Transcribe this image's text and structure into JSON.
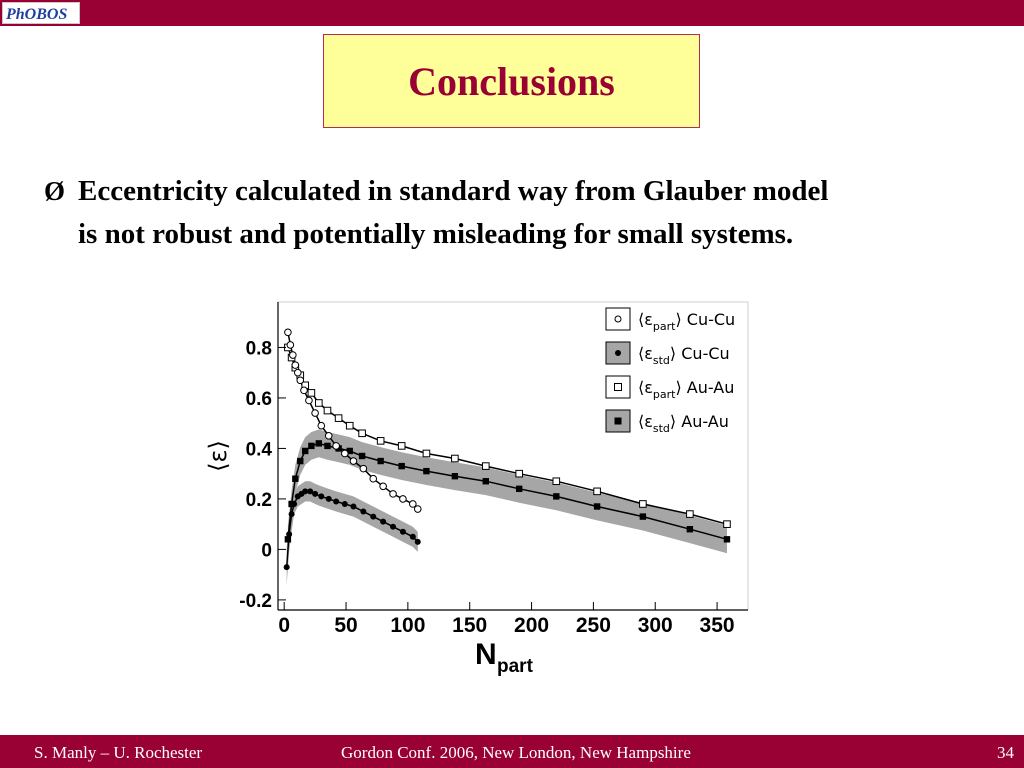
{
  "header": {
    "logo_text": "PhOBOS",
    "bar_color": "#990033"
  },
  "slide": {
    "title": "Conclusions",
    "title_color": "#990033",
    "title_box_color": "#ffff99",
    "bullet_marker": "Ø",
    "bullet_line1": "Eccentricity calculated in standard way from Glauber model",
    "bullet_line2": "is not robust and potentially misleading for small systems."
  },
  "chart_data": {
    "type": "scatter",
    "title": "",
    "xlabel": "N",
    "xlabel_sub": "part",
    "ylabel": "⟨ε⟩",
    "xlim": [
      -5,
      375
    ],
    "ylim": [
      -0.24,
      0.98
    ],
    "xticks": [
      0,
      50,
      100,
      150,
      200,
      250,
      300,
      350
    ],
    "yticks": [
      -0.2,
      0,
      0.2,
      0.4,
      0.6,
      0.8
    ],
    "xtick_labels": [
      "0",
      "50",
      "100",
      "150",
      "200",
      "250",
      "300",
      "350"
    ],
    "ytick_labels": [
      "-0.2",
      "0",
      "0.2",
      "0.4",
      "0.6",
      "0.8"
    ],
    "grid": false,
    "legend_position": "top-right",
    "legend": [
      {
        "symbol": "open-circle",
        "bracket_sub": "part",
        "system": "Cu-Cu"
      },
      {
        "symbol": "filled-circle",
        "bracket_sub": "std",
        "system": "Cu-Cu"
      },
      {
        "symbol": "open-square",
        "bracket_sub": "part",
        "system": "Au-Au"
      },
      {
        "symbol": "filled-square",
        "bracket_sub": "std",
        "system": "Au-Au"
      }
    ],
    "band_color": "#a6a6a6",
    "series": [
      {
        "name": "⟨εpart⟩ Cu-Cu",
        "marker": "open-circle",
        "x": [
          3,
          5,
          7,
          9,
          11,
          13,
          16,
          20,
          25,
          30,
          36,
          42,
          49,
          56,
          64,
          72,
          80,
          88,
          96,
          104,
          108
        ],
        "y": [
          0.86,
          0.81,
          0.77,
          0.73,
          0.7,
          0.67,
          0.63,
          0.59,
          0.54,
          0.49,
          0.45,
          0.41,
          0.38,
          0.35,
          0.32,
          0.28,
          0.25,
          0.22,
          0.2,
          0.18,
          0.16
        ]
      },
      {
        "name": "⟨εstd⟩ Cu-Cu",
        "marker": "filled-circle",
        "x": [
          2,
          4,
          6,
          8,
          11,
          14,
          17,
          21,
          25,
          30,
          36,
          42,
          49,
          56,
          64,
          72,
          80,
          88,
          96,
          104,
          108
        ],
        "y": [
          -0.07,
          0.06,
          0.14,
          0.18,
          0.21,
          0.22,
          0.23,
          0.23,
          0.22,
          0.21,
          0.2,
          0.19,
          0.18,
          0.17,
          0.15,
          0.13,
          0.11,
          0.09,
          0.07,
          0.05,
          0.03
        ]
      },
      {
        "name": "⟨εpart⟩ Au-Au",
        "marker": "open-square",
        "x": [
          3,
          6,
          9,
          13,
          17,
          22,
          28,
          35,
          44,
          53,
          63,
          78,
          95,
          115,
          138,
          163,
          190,
          220,
          253,
          290,
          328,
          358
        ],
        "y": [
          0.8,
          0.76,
          0.72,
          0.69,
          0.65,
          0.62,
          0.58,
          0.55,
          0.52,
          0.49,
          0.46,
          0.43,
          0.41,
          0.38,
          0.36,
          0.33,
          0.3,
          0.27,
          0.23,
          0.18,
          0.14,
          0.1
        ]
      },
      {
        "name": "⟨εstd⟩ Au-Au",
        "marker": "filled-square",
        "x": [
          3,
          6,
          9,
          13,
          17,
          22,
          28,
          35,
          44,
          53,
          63,
          78,
          95,
          115,
          138,
          163,
          190,
          220,
          253,
          290,
          328,
          358
        ],
        "y": [
          0.04,
          0.18,
          0.28,
          0.35,
          0.39,
          0.41,
          0.42,
          0.41,
          0.4,
          0.39,
          0.37,
          0.35,
          0.33,
          0.31,
          0.29,
          0.27,
          0.24,
          0.21,
          0.17,
          0.13,
          0.08,
          0.04
        ]
      }
    ]
  },
  "footer": {
    "left": "S. Manly – U. Rochester",
    "center": "Gordon Conf. 2006, New London, New Hampshire",
    "page": "34"
  }
}
